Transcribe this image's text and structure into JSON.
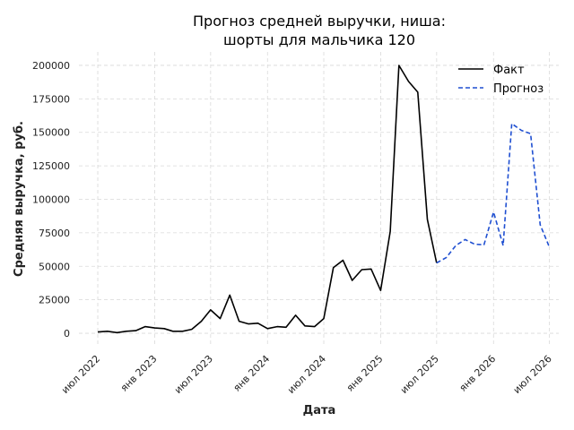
{
  "chart_data": {
    "type": "line",
    "title_line1": "Прогноз средней выручки, ниша:",
    "title_line2": "шорты для мальчика 120",
    "xlabel": "Дата",
    "ylabel": "Средняя выручка, руб.",
    "x_range": [
      "2022-05-01",
      "2026-07-31"
    ],
    "ylim": [
      -10000,
      210000
    ],
    "y_ticks": [
      0,
      25000,
      50000,
      75000,
      100000,
      125000,
      150000,
      175000,
      200000
    ],
    "x_ticks": [
      {
        "date": "2022-07-01",
        "label": "июл 2022"
      },
      {
        "date": "2023-01-01",
        "label": "янв 2023"
      },
      {
        "date": "2023-07-01",
        "label": "июл 2023"
      },
      {
        "date": "2024-01-01",
        "label": "янв 2024"
      },
      {
        "date": "2024-07-01",
        "label": "июл 2024"
      },
      {
        "date": "2025-01-01",
        "label": "янв 2025"
      },
      {
        "date": "2025-07-01",
        "label": "июл 2025"
      },
      {
        "date": "2026-01-01",
        "label": "янв 2026"
      },
      {
        "date": "2026-07-01",
        "label": "июл 2026"
      }
    ],
    "grid": true,
    "legend_position": "top-right",
    "series": [
      {
        "name": "Факт",
        "color": "#000000",
        "style": "solid",
        "points": [
          [
            "2022-07-01",
            1000
          ],
          [
            "2022-08-01",
            1500
          ],
          [
            "2022-09-01",
            500
          ],
          [
            "2022-10-01",
            1500
          ],
          [
            "2022-11-01",
            2000
          ],
          [
            "2022-12-01",
            5000
          ],
          [
            "2023-01-01",
            4000
          ],
          [
            "2023-02-01",
            3500
          ],
          [
            "2023-03-01",
            1500
          ],
          [
            "2023-04-01",
            1500
          ],
          [
            "2023-05-01",
            3000
          ],
          [
            "2023-06-01",
            9000
          ],
          [
            "2023-07-01",
            17500
          ],
          [
            "2023-08-01",
            11000
          ],
          [
            "2023-09-01",
            28500
          ],
          [
            "2023-10-01",
            9000
          ],
          [
            "2023-11-01",
            7000
          ],
          [
            "2023-12-01",
            7500
          ],
          [
            "2024-01-01",
            3500
          ],
          [
            "2024-02-01",
            5000
          ],
          [
            "2024-03-01",
            4500
          ],
          [
            "2024-04-01",
            13500
          ],
          [
            "2024-05-01",
            5500
          ],
          [
            "2024-06-01",
            5000
          ],
          [
            "2024-07-01",
            11000
          ],
          [
            "2024-08-01",
            49000
          ],
          [
            "2024-09-01",
            54500
          ],
          [
            "2024-10-01",
            39500
          ],
          [
            "2024-11-01",
            47500
          ],
          [
            "2024-12-01",
            48000
          ],
          [
            "2025-01-01",
            32000
          ],
          [
            "2025-02-01",
            76000
          ],
          [
            "2025-03-01",
            200000
          ],
          [
            "2025-04-01",
            188000
          ],
          [
            "2025-05-01",
            180000
          ],
          [
            "2025-06-01",
            85000
          ],
          [
            "2025-07-01",
            52500
          ]
        ]
      },
      {
        "name": "Прогноз",
        "color": "#1f4fd1",
        "style": "dashed",
        "points": [
          [
            "2025-07-01",
            52500
          ],
          [
            "2025-08-01",
            56500
          ],
          [
            "2025-09-01",
            65500
          ],
          [
            "2025-10-01",
            70000
          ],
          [
            "2025-11-01",
            66500
          ],
          [
            "2025-12-01",
            66000
          ],
          [
            "2026-01-01",
            90500
          ],
          [
            "2026-02-01",
            65500
          ],
          [
            "2026-03-01",
            156500
          ],
          [
            "2026-04-01",
            151500
          ],
          [
            "2026-05-01",
            149000
          ],
          [
            "2026-06-01",
            81000
          ],
          [
            "2026-07-01",
            64000
          ]
        ]
      }
    ]
  }
}
